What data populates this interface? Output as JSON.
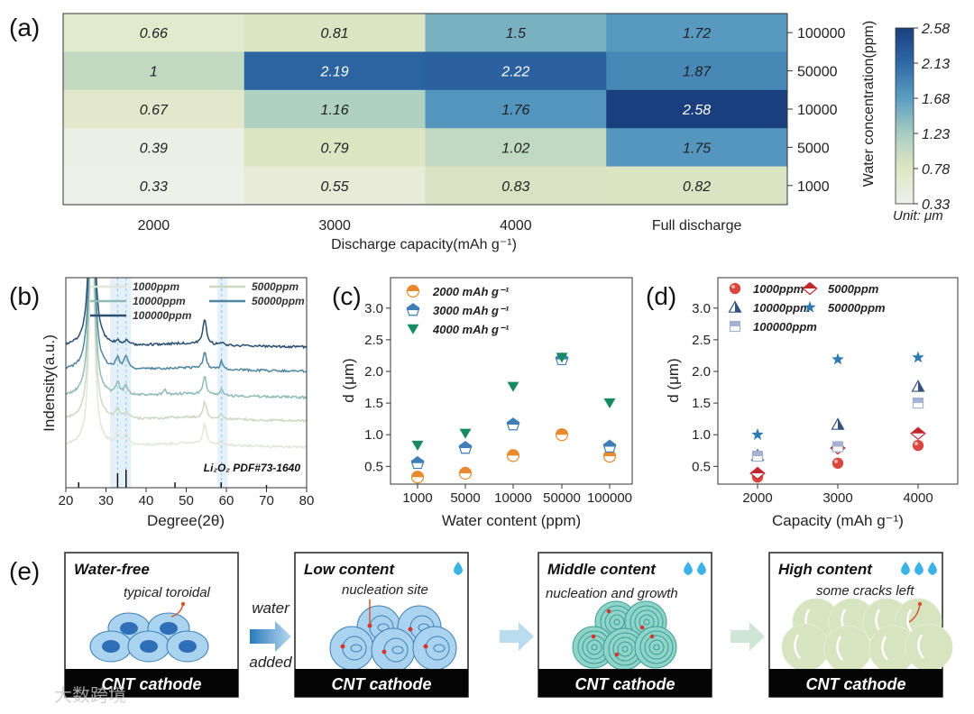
{
  "figure_labels": {
    "a": "(a)",
    "b": "(b)",
    "c": "(c)",
    "d": "(d)",
    "e": "(e)"
  },
  "chart_data": [
    {
      "panel": "a",
      "type": "heatmap",
      "x_categories": [
        "2000",
        "3000",
        "4000",
        "Full discharge"
      ],
      "y_categories": [
        "100000",
        "50000",
        "10000",
        "5000",
        "1000"
      ],
      "values": [
        [
          0.66,
          0.81,
          1.5,
          1.72
        ],
        [
          1,
          2.19,
          2.22,
          1.87
        ],
        [
          0.67,
          1.16,
          1.76,
          2.58
        ],
        [
          0.39,
          0.79,
          1.02,
          1.75
        ],
        [
          0.33,
          0.55,
          0.83,
          0.82
        ]
      ],
      "value_labels": [
        [
          "0.66",
          "0.81",
          "1.5",
          "1.72"
        ],
        [
          "1",
          "2.19",
          "2.22",
          "1.87"
        ],
        [
          "0.67",
          "1.16",
          "1.76",
          "2.58"
        ],
        [
          "0.39",
          "0.79",
          "1.02",
          "1.75"
        ],
        [
          "0.33",
          "0.55",
          "0.83",
          "0.82"
        ]
      ],
      "xlabel": "Discharge capacity(mAh g⁻¹)",
      "ylabel": "Water concentration(ppm)",
      "colorbar": {
        "range": [
          0.33,
          2.58
        ],
        "ticks": [
          "2.58",
          "2.13",
          "1.68",
          "1.23",
          "0.78",
          "0.33"
        ],
        "unit_label": "Unit: μm",
        "colors": [
          "#eef0ea",
          "#dfe6c3",
          "#a6cdc1",
          "#5b9ec1",
          "#2e6aa6",
          "#1a3f7e"
        ]
      }
    },
    {
      "panel": "b",
      "type": "line",
      "xlabel": "Degree(2θ)",
      "ylabel": "Indensity(a.u.)",
      "xlim": [
        20,
        80
      ],
      "xticks": [
        "20",
        "30",
        "40",
        "50",
        "60",
        "70",
        "80"
      ],
      "series": [
        {
          "name": "1000ppm",
          "color": "#e1e7da",
          "peaks_2theta": [
            26.5,
            32.9,
            35.0,
            54.6,
            58.8
          ]
        },
        {
          "name": "5000ppm",
          "color": "#cddac3",
          "peaks_2theta": [
            26.5,
            32.9,
            35.0,
            54.6,
            58.8
          ]
        },
        {
          "name": "10000ppm",
          "color": "#8fbcb5",
          "peaks_2theta": [
            26.5,
            32.9,
            35.0,
            44.6,
            54.6,
            58.8
          ]
        },
        {
          "name": "50000ppm",
          "color": "#4f86a0",
          "peaks_2theta": [
            26.5,
            32.9,
            35.0,
            54.6,
            58.8
          ]
        },
        {
          "name": "100000ppm",
          "color": "#2a4f70",
          "peaks_2theta": [
            26.5,
            32.9,
            35.0,
            54.6,
            58.8
          ]
        }
      ],
      "reference": {
        "label": "Li₂O₂ PDF#73-1640",
        "lines": [
          {
            "x": 23.2,
            "rel": 0.3
          },
          {
            "x": 32.9,
            "rel": 0.8
          },
          {
            "x": 35.0,
            "rel": 1.0
          },
          {
            "x": 47.2,
            "rel": 0.3
          },
          {
            "x": 58.7,
            "rel": 0.3
          },
          {
            "x": 70.0,
            "rel": 0.15
          }
        ],
        "highlight_bands": [
          [
            31.0,
            36.3
          ],
          [
            57.8,
            60.3
          ]
        ]
      }
    },
    {
      "panel": "c",
      "type": "scatter",
      "xlabel": "Water content (ppm)",
      "ylabel": "d (μm)",
      "categories": [
        "1000",
        "5000",
        "10000",
        "50000",
        "100000"
      ],
      "ylim": [
        0.2,
        3.45
      ],
      "yticks": [
        "0.5",
        "1.0",
        "1.5",
        "2.0",
        "2.5",
        "3.0"
      ],
      "series": [
        {
          "name": "2000 mAh g⁻¹",
          "marker": "half-circle",
          "color": "#e8892d",
          "values": [
            0.33,
            0.39,
            0.67,
            1,
            0.66
          ]
        },
        {
          "name": "3000 mAh g⁻¹",
          "marker": "half-pentagon",
          "color": "#3f7fb5",
          "values": [
            0.55,
            0.79,
            1.16,
            2.19,
            0.81
          ]
        },
        {
          "name": "4000 mAh g⁻¹",
          "marker": "triangle-down",
          "color": "#178a63",
          "values": [
            0.83,
            1.02,
            1.76,
            2.22,
            1.5
          ]
        }
      ]
    },
    {
      "panel": "d",
      "type": "scatter",
      "xlabel": "Capacity (mAh g⁻¹)",
      "ylabel": "d (μm)",
      "categories": [
        "2000",
        "3000",
        "4000"
      ],
      "ylim": [
        0.2,
        3.45
      ],
      "yticks": [
        "0.5",
        "1.0",
        "1.5",
        "2.0",
        "2.5",
        "3.0"
      ],
      "series": [
        {
          "name": "1000ppm",
          "marker": "circle",
          "color": "#d9473f",
          "values": [
            0.33,
            0.55,
            0.83
          ]
        },
        {
          "name": "5000ppm",
          "marker": "half-diamond",
          "color": "#c0282d",
          "values": [
            0.39,
            0.79,
            1.02
          ]
        },
        {
          "name": "10000ppm",
          "marker": "half-triangle",
          "color": "#34527f",
          "values": [
            0.67,
            1.16,
            1.76
          ]
        },
        {
          "name": "50000ppm",
          "marker": "star",
          "color": "#2f7ab0",
          "values": [
            1,
            2.19,
            2.22
          ]
        },
        {
          "name": "100000ppm",
          "marker": "half-square",
          "color": "#a3b2d2",
          "values": [
            0.66,
            0.81,
            1.5
          ]
        }
      ]
    }
  ],
  "schematic": {
    "cathode_label": "CNT cathode",
    "arrow_text": {
      "top": "water",
      "bottom": "added"
    },
    "stages": [
      {
        "title": "Water-free",
        "note": "typical toroidal",
        "drops": 0
      },
      {
        "title": "Low content",
        "note": "nucleation site",
        "drops": 1
      },
      {
        "title": "Middle content",
        "note": "nucleation and growth",
        "drops": 2
      },
      {
        "title": "High content",
        "note": "some cracks left",
        "drops": 3
      }
    ]
  },
  "watermark": "大数跨境"
}
